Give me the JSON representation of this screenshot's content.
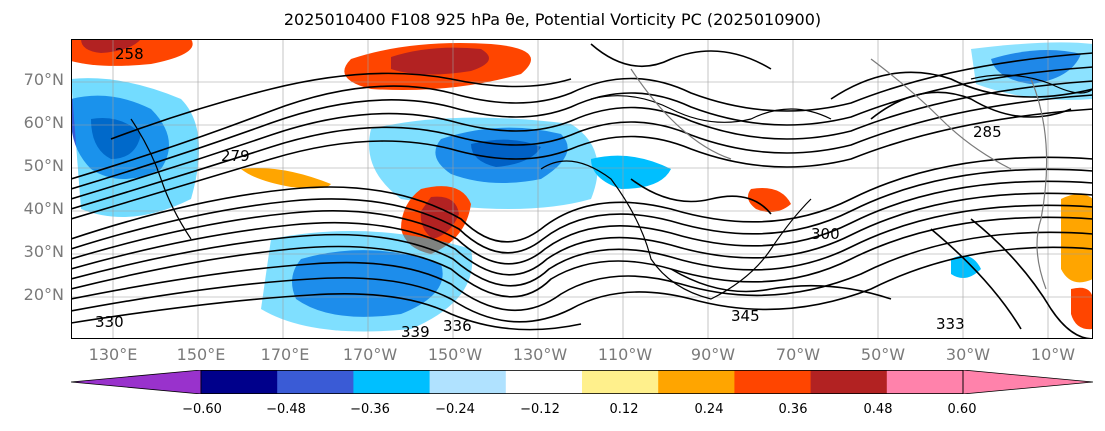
{
  "title": "2025010400 F108 925 hPa θe, Potential Vorticity PC (2025010900)",
  "lat_labels": [
    "70°N",
    "60°N",
    "50°N",
    "40°N",
    "30°N",
    "20°N"
  ],
  "lon_labels": [
    "130°E",
    "150°E",
    "170°E",
    "170°W",
    "150°W",
    "130°W",
    "110°W",
    "90°W",
    "70°W",
    "50°W",
    "30°W",
    "10°W"
  ],
  "contour_labels": [
    "258",
    "285",
    "279",
    "336",
    "339",
    "300",
    "333",
    "345",
    "330"
  ],
  "colorbar": {
    "ticks": [
      "−0.60",
      "−0.48",
      "−0.36",
      "−0.24",
      "−0.12",
      "0.12",
      "0.24",
      "0.36",
      "0.48",
      "0.60"
    ],
    "colors": [
      "#9932cc",
      "#00008b",
      "#3a5bd6",
      "#00bfff",
      "#b0e2ff",
      "#ffffff",
      "#fff08c",
      "#ffa500",
      "#ff4500",
      "#b22222",
      "#ff82ab",
      "#ff82ab"
    ]
  },
  "colors": {
    "coast": "#000000",
    "contour": "#000000",
    "grid": "#9e9e9e",
    "country_border": "#7a7a7a"
  }
}
